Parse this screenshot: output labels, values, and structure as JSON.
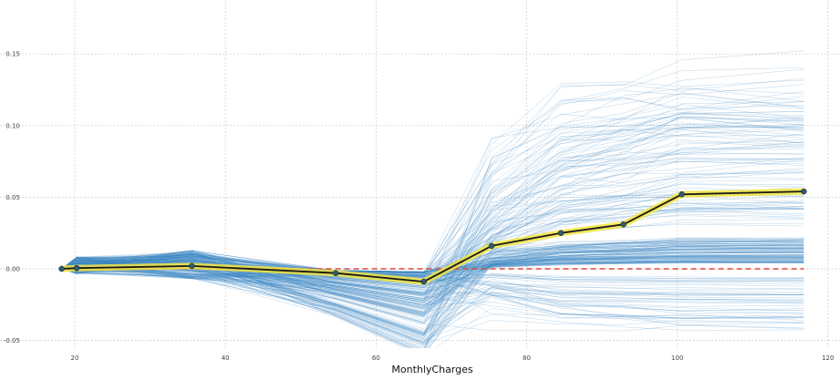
{
  "chart_data": {
    "type": "line",
    "xlabel": "MonthlyCharges",
    "ylabel": "",
    "xlim": [
      18.25,
      121
    ],
    "ylim": [
      -0.05,
      0.18
    ],
    "x_ticks": [
      20,
      40,
      60,
      80,
      100,
      120
    ],
    "x_tick_labels": [
      "20",
      "40",
      "60",
      "80",
      "100",
      "120"
    ],
    "y_ticks": [
      -0.05,
      0.0,
      0.05,
      0.1,
      0.15
    ],
    "y_tick_labels": [
      "-0.05",
      "0.00",
      "0.05",
      "0.10",
      "0.15"
    ],
    "grid": true,
    "x": [
      18.25,
      20.25,
      35.55,
      54.65,
      66.35,
      75.35,
      84.55,
      92.85,
      100.6,
      116.8
    ],
    "series": [
      {
        "role": "average",
        "values": [
          0.0,
          0.0005,
          0.002,
          -0.003,
          -0.009,
          0.016,
          0.025,
          0.031,
          0.052,
          0.054
        ]
      },
      {
        "role": "baseline",
        "values": [
          0.0,
          0.0,
          0.0,
          0.0,
          0.0,
          0.0,
          0.0,
          0.0,
          0.0,
          0.0
        ]
      }
    ],
    "colors": {
      "ice_lines": "#3b86c4",
      "average_line": "#1a1a1a",
      "average_band": "#f5e642",
      "marker": "#2f5c6f",
      "baseline": "#e0473b",
      "grid": "#cccccc"
    }
  }
}
